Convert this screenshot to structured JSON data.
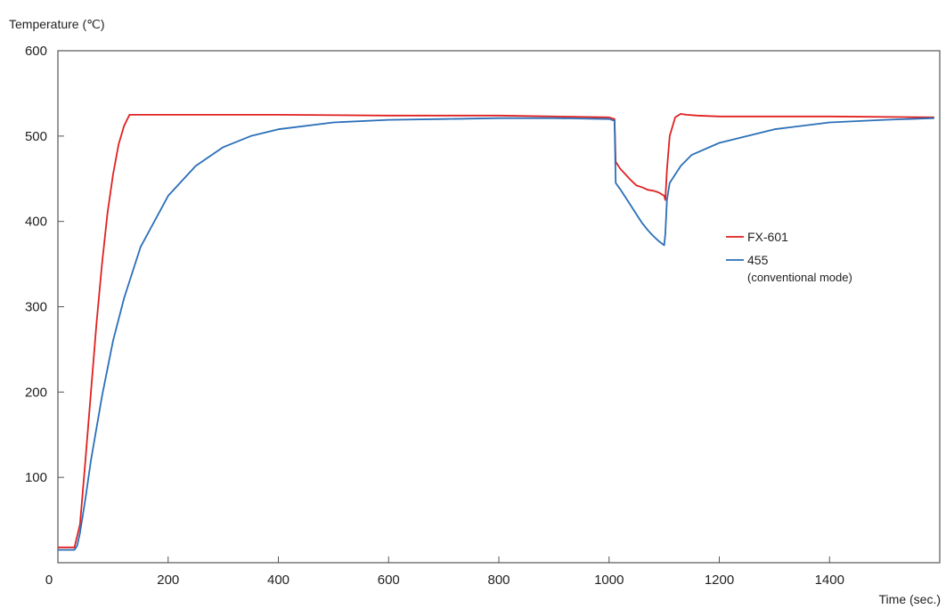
{
  "chart_data": {
    "type": "line",
    "ylabel": "Temperature (℃)",
    "xlabel": "Time (sec.)",
    "xlim": [
      0,
      1600
    ],
    "ylim": [
      0,
      600
    ],
    "xticks": [
      0,
      200,
      400,
      600,
      800,
      1000,
      1200,
      1400
    ],
    "yticks": [
      100,
      200,
      300,
      400,
      500,
      600
    ],
    "grid": false,
    "legend_position": "right",
    "series": [
      {
        "name": "FX-601",
        "sub": "",
        "color": "#e02020",
        "x": [
          0,
          30,
          40,
          50,
          60,
          70,
          80,
          90,
          100,
          110,
          120,
          130,
          150,
          200,
          400,
          600,
          800,
          1000,
          1010,
          1012,
          1020,
          1030,
          1040,
          1050,
          1060,
          1070,
          1080,
          1090,
          1100,
          1102,
          1105,
          1110,
          1120,
          1130,
          1140,
          1160,
          1200,
          1400,
          1590
        ],
        "y": [
          18,
          18,
          45,
          120,
          200,
          280,
          350,
          410,
          455,
          490,
          512,
          525,
          525,
          525,
          525,
          524,
          524,
          522,
          520,
          470,
          462,
          455,
          448,
          442,
          440,
          437,
          436,
          434,
          430,
          425,
          460,
          500,
          522,
          526,
          525,
          524,
          523,
          523,
          522
        ]
      },
      {
        "name": "455",
        "sub": "(conventional mode)",
        "color": "#2a6fb8",
        "x": [
          0,
          30,
          35,
          40,
          50,
          60,
          80,
          100,
          120,
          150,
          200,
          250,
          300,
          350,
          400,
          500,
          600,
          700,
          800,
          900,
          1000,
          1010,
          1012,
          1020,
          1030,
          1040,
          1050,
          1060,
          1070,
          1080,
          1090,
          1100,
          1102,
          1105,
          1110,
          1130,
          1150,
          1200,
          1300,
          1400,
          1500,
          1590
        ],
        "y": [
          15,
          15,
          20,
          35,
          75,
          120,
          195,
          260,
          310,
          370,
          430,
          465,
          487,
          500,
          508,
          516,
          519,
          520,
          521,
          521,
          520,
          518,
          445,
          438,
          428,
          418,
          408,
          398,
          390,
          383,
          377,
          372,
          385,
          425,
          445,
          465,
          478,
          492,
          508,
          516,
          519,
          521
        ]
      }
    ]
  }
}
